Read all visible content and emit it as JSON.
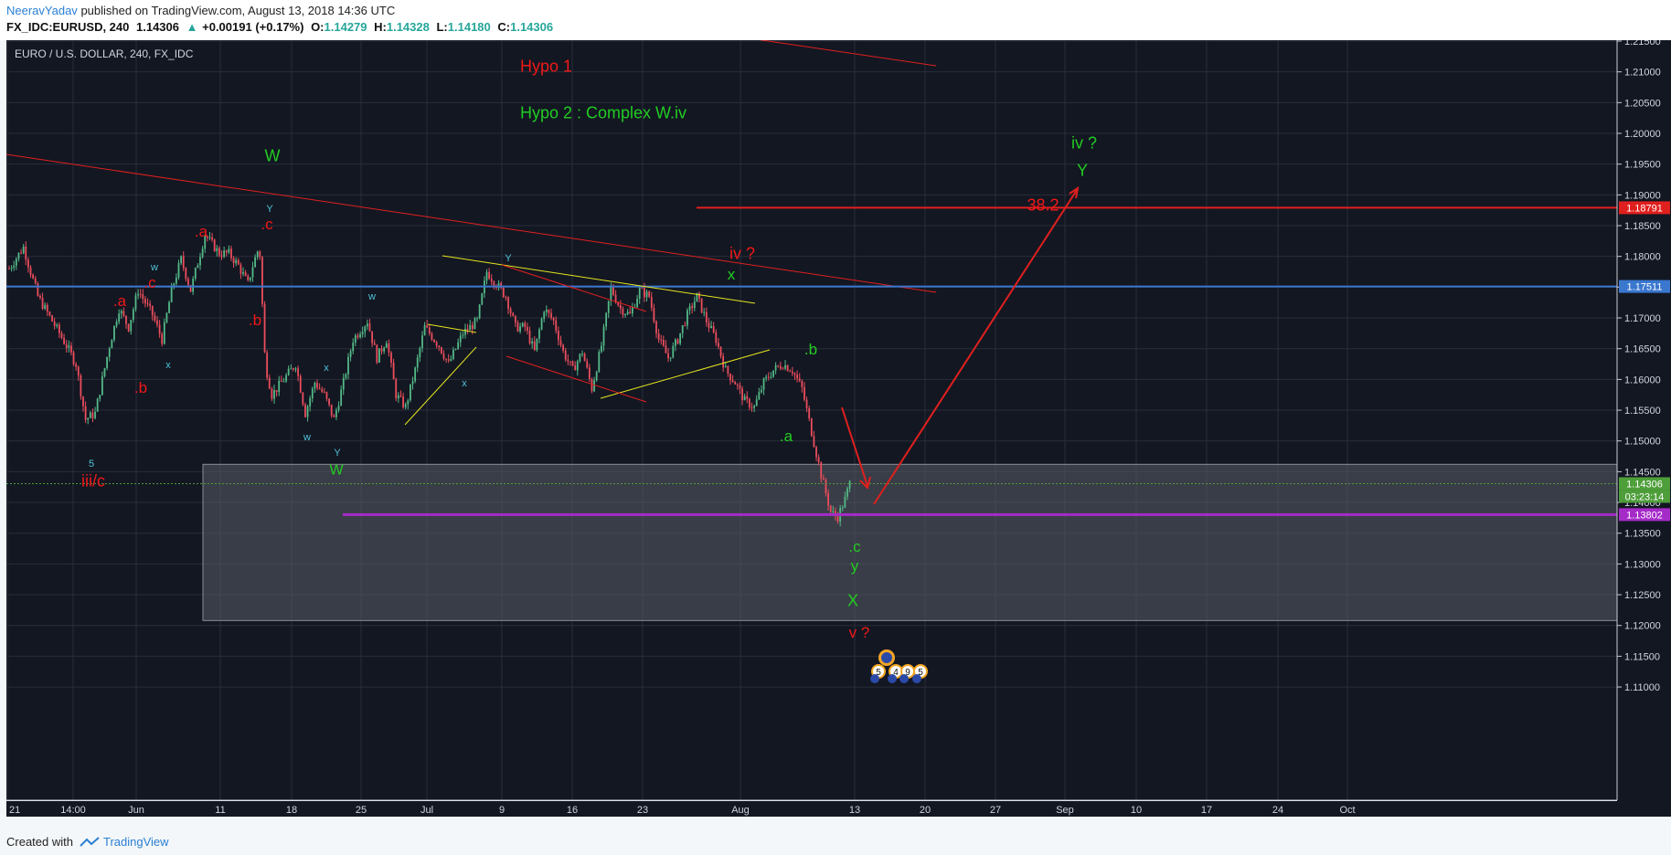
{
  "header": {
    "author": "NeeravYadav",
    "published": "published on TradingView.com, August 13, 2018 14:36 UTC",
    "symbol": "FX_IDC:EURUSD, 240",
    "last": "1.14306",
    "change": "+0.00191 (+0.17%)",
    "o_label": "O:",
    "o": "1.14279",
    "h_label": "H:",
    "h": "1.14328",
    "l_label": "L:",
    "l": "1.14180",
    "c_label": "C:",
    "c": "1.14306"
  },
  "footer": {
    "created": "Created with",
    "brand": "TradingView"
  },
  "chart_data": {
    "type": "candlestick",
    "title": "EURO / U.S. DOLLAR, 240, FX_IDC",
    "ylim": [
      1.1095,
      1.216
    ],
    "y_ticks": [
      "1.21500",
      "1.21000",
      "1.20500",
      "1.20000",
      "1.19500",
      "1.19000",
      "1.18500",
      "1.18000",
      "1.17500",
      "1.17000",
      "1.16500",
      "1.16000",
      "1.15500",
      "1.15000",
      "1.14500",
      "1.14000",
      "1.13500",
      "1.13000",
      "1.12500",
      "1.12000",
      "1.11500",
      "1.11000"
    ],
    "x_ticks": [
      "21",
      "14:00",
      "Jun",
      "11",
      "18",
      "25",
      "Jul",
      "9",
      "16",
      "23",
      "Aug",
      "13",
      "20",
      "27",
      "Sep",
      "10",
      "17",
      "24",
      "Oct"
    ],
    "price_tags": [
      {
        "value": 1.18791,
        "text": "1.18791",
        "color": "#e0201e"
      },
      {
        "value": 1.17511,
        "text": "1.17511",
        "color": "#3a77cf"
      },
      {
        "value": 1.14306,
        "text": "1.14306",
        "color": "#4e9e3a"
      },
      {
        "value": 1.13802,
        "text": "1.13802",
        "color": "#a52bc8"
      }
    ],
    "countdown": "03:23:14",
    "levels": [
      {
        "label": "38.2",
        "value": 1.18791
      },
      {
        "value": 1.17511
      },
      {
        "value": 1.13802
      }
    ],
    "annotations": [
      {
        "text": "Hypo 1",
        "color": "red"
      },
      {
        "text": "Hypo 2 : Complex W.iv",
        "color": "green"
      },
      {
        "text": "W",
        "color": "green"
      },
      {
        "text": "Y",
        "color": "cyan"
      },
      {
        "text": ".c",
        "color": "red"
      },
      {
        "text": ".a",
        "color": "red"
      },
      {
        "text": "w",
        "color": "cyan"
      },
      {
        "text": ".c",
        "color": "red"
      },
      {
        "text": ".a",
        "color": "red"
      },
      {
        "text": ".b",
        "color": "red"
      },
      {
        "text": "x",
        "color": "cyan"
      },
      {
        "text": ".b",
        "color": "red"
      },
      {
        "text": "5",
        "color": "cyan"
      },
      {
        "text": "iii/c",
        "color": "red"
      },
      {
        "text": "w",
        "color": "cyan"
      },
      {
        "text": "x",
        "color": "cyan"
      },
      {
        "text": "w",
        "color": "cyan"
      },
      {
        "text": "Y",
        "color": "cyan"
      },
      {
        "text": "W",
        "color": "green"
      },
      {
        "text": "x",
        "color": "cyan"
      },
      {
        "text": "Y",
        "color": "cyan"
      },
      {
        "text": "iv ?",
        "color": "red"
      },
      {
        "text": "x",
        "color": "green"
      },
      {
        "text": ".b",
        "color": "green"
      },
      {
        "text": ".a",
        "color": "green"
      },
      {
        "text": ".c",
        "color": "green"
      },
      {
        "text": "y",
        "color": "green"
      },
      {
        "text": "X",
        "color": "green"
      },
      {
        "text": "v ?",
        "color": "red"
      },
      {
        "text": "iv ?",
        "color": "green"
      },
      {
        "text": "Y",
        "color": "green"
      },
      {
        "text": "38.2",
        "color": "red"
      }
    ],
    "events": [
      "5",
      "4",
      "9",
      "5"
    ],
    "price_path": [
      [
        0,
        1.178
      ],
      [
        1.5,
        1.1815
      ],
      [
        3,
        1.1735
      ],
      [
        4.5,
        1.1695
      ],
      [
        6,
        1.1655
      ],
      [
        7,
        1.1625
      ],
      [
        8,
        1.1535
      ],
      [
        9,
        1.1545
      ],
      [
        10.5,
        1.1655
      ],
      [
        11.5,
        1.1715
      ],
      [
        12.5,
        1.1685
      ],
      [
        13.5,
        1.1745
      ],
      [
        15,
        1.1705
      ],
      [
        16,
        1.1665
      ],
      [
        17,
        1.1745
      ],
      [
        18,
        1.1795
      ],
      [
        19,
        1.1745
      ],
      [
        20.5,
        1.1835
      ],
      [
        22,
        1.1805
      ],
      [
        23,
        1.1805
      ],
      [
        24,
        1.1785
      ],
      [
        25,
        1.1755
      ],
      [
        25.5,
        1.1785
      ],
      [
        26.2,
        1.1818
      ],
      [
        26.8,
        1.1625
      ],
      [
        27.5,
        1.1575
      ],
      [
        29,
        1.1605
      ],
      [
        30,
        1.1625
      ],
      [
        31,
        1.1545
      ],
      [
        32,
        1.1595
      ],
      [
        33,
        1.1575
      ],
      [
        34,
        1.1535
      ],
      [
        35,
        1.1595
      ],
      [
        36,
        1.1665
      ],
      [
        37.5,
        1.1695
      ],
      [
        38.5,
        1.1635
      ],
      [
        39.5,
        1.1665
      ],
      [
        40.5,
        1.1575
      ],
      [
        41.5,
        1.1555
      ],
      [
        42.5,
        1.1615
      ],
      [
        43.5,
        1.1685
      ],
      [
        45,
        1.1655
      ],
      [
        46,
        1.1625
      ],
      [
        47.5,
        1.1675
      ],
      [
        49,
        1.1695
      ],
      [
        50,
        1.1775
      ],
      [
        51,
        1.1755
      ],
      [
        52,
        1.1735
      ],
      [
        53,
        1.1685
      ],
      [
        54,
        1.1685
      ],
      [
        55,
        1.1645
      ],
      [
        56,
        1.1715
      ],
      [
        57,
        1.1695
      ],
      [
        58,
        1.1645
      ],
      [
        59,
        1.1615
      ],
      [
        60,
        1.1645
      ],
      [
        61,
        1.1585
      ],
      [
        62,
        1.1655
      ],
      [
        63,
        1.1748
      ],
      [
        64,
        1.1715
      ],
      [
        65,
        1.1705
      ],
      [
        66,
        1.1745
      ],
      [
        67,
        1.1735
      ],
      [
        68,
        1.1665
      ],
      [
        69,
        1.1635
      ],
      [
        70,
        1.1665
      ],
      [
        71,
        1.1705
      ],
      [
        72,
        1.1735
      ],
      [
        73,
        1.1695
      ],
      [
        74,
        1.1665
      ],
      [
        75,
        1.1615
      ],
      [
        76,
        1.1595
      ],
      [
        77,
        1.1565
      ],
      [
        78,
        1.1555
      ],
      [
        79,
        1.1595
      ],
      [
        80,
        1.1615
      ],
      [
        81,
        1.1625
      ],
      [
        82,
        1.1615
      ],
      [
        83,
        1.1585
      ],
      [
        84,
        1.1515
      ],
      [
        85,
        1.1445
      ],
      [
        86,
        1.1385
      ],
      [
        86.7,
        1.1375
      ],
      [
        87.5,
        1.1405
      ],
      [
        88,
        1.1431
      ]
    ]
  }
}
